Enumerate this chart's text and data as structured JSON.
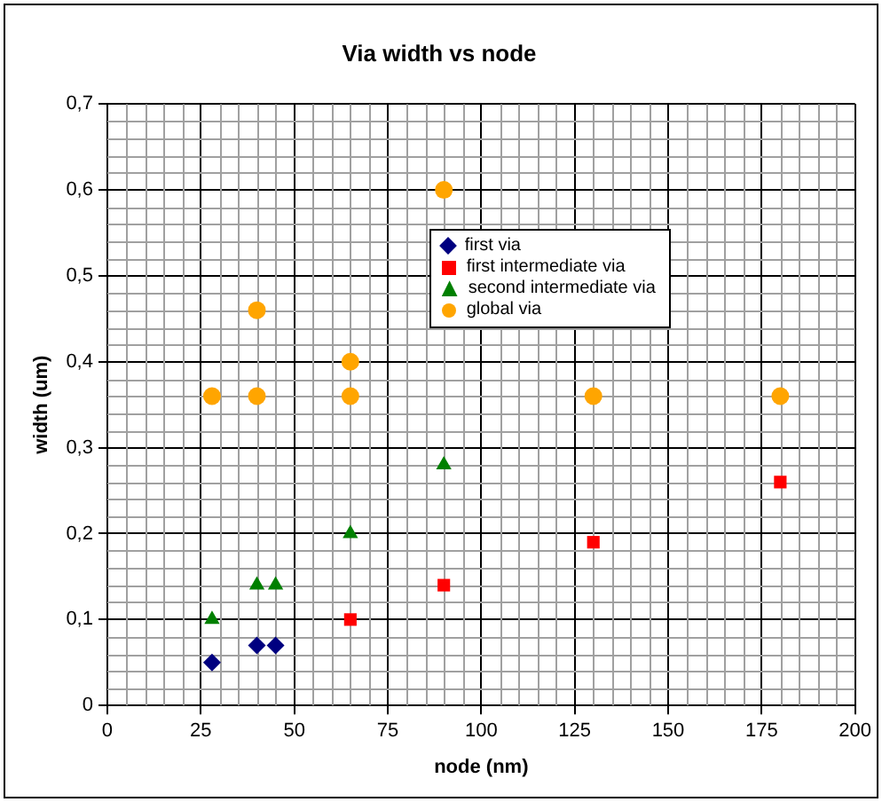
{
  "chart_data": {
    "type": "scatter",
    "title": "Via width vs node",
    "xlabel": "node (nm)",
    "ylabel": "width (um)",
    "xlim": [
      0,
      200
    ],
    "xticks": [
      0,
      25,
      50,
      75,
      100,
      125,
      150,
      175,
      200
    ],
    "ylim": [
      0,
      0.7
    ],
    "yticks": [
      0,
      {
        "value": 0.1,
        "label": "0,1"
      },
      {
        "value": 0.2,
        "label": "0,2"
      },
      {
        "value": 0.3,
        "label": "0,3"
      },
      {
        "value": 0.4,
        "label": "0,4"
      },
      {
        "value": 0.5,
        "label": "0,5"
      },
      {
        "value": 0.6,
        "label": "0,6"
      },
      {
        "value": 0.7,
        "label": "0,7"
      }
    ],
    "grid": true,
    "legend": "top right",
    "series": [
      {
        "name": "first via",
        "color": "#000080",
        "marker": "diamond",
        "x": [
          28,
          40,
          45
        ],
        "values": [
          0.05,
          0.07,
          0.07
        ]
      },
      {
        "name": "first intermediate via",
        "color": "#ff0000",
        "marker": "square",
        "x": [
          65,
          90,
          130,
          180
        ],
        "values": [
          0.1,
          0.14,
          0.19,
          0.26
        ]
      },
      {
        "name": "second intermediate via",
        "color": "#008000",
        "marker": "triangle",
        "x": [
          28,
          40,
          45,
          65,
          90
        ],
        "values": [
          0.1,
          0.14,
          0.14,
          0.2,
          0.28
        ]
      },
      {
        "name": "global via",
        "color": "#ffa500",
        "marker": "circle",
        "x": [
          28,
          40,
          40,
          65,
          65,
          90,
          130,
          180
        ],
        "values": [
          0.36,
          0.36,
          0.46,
          0.36,
          0.4,
          0.6,
          0.36,
          0.36
        ]
      }
    ]
  }
}
